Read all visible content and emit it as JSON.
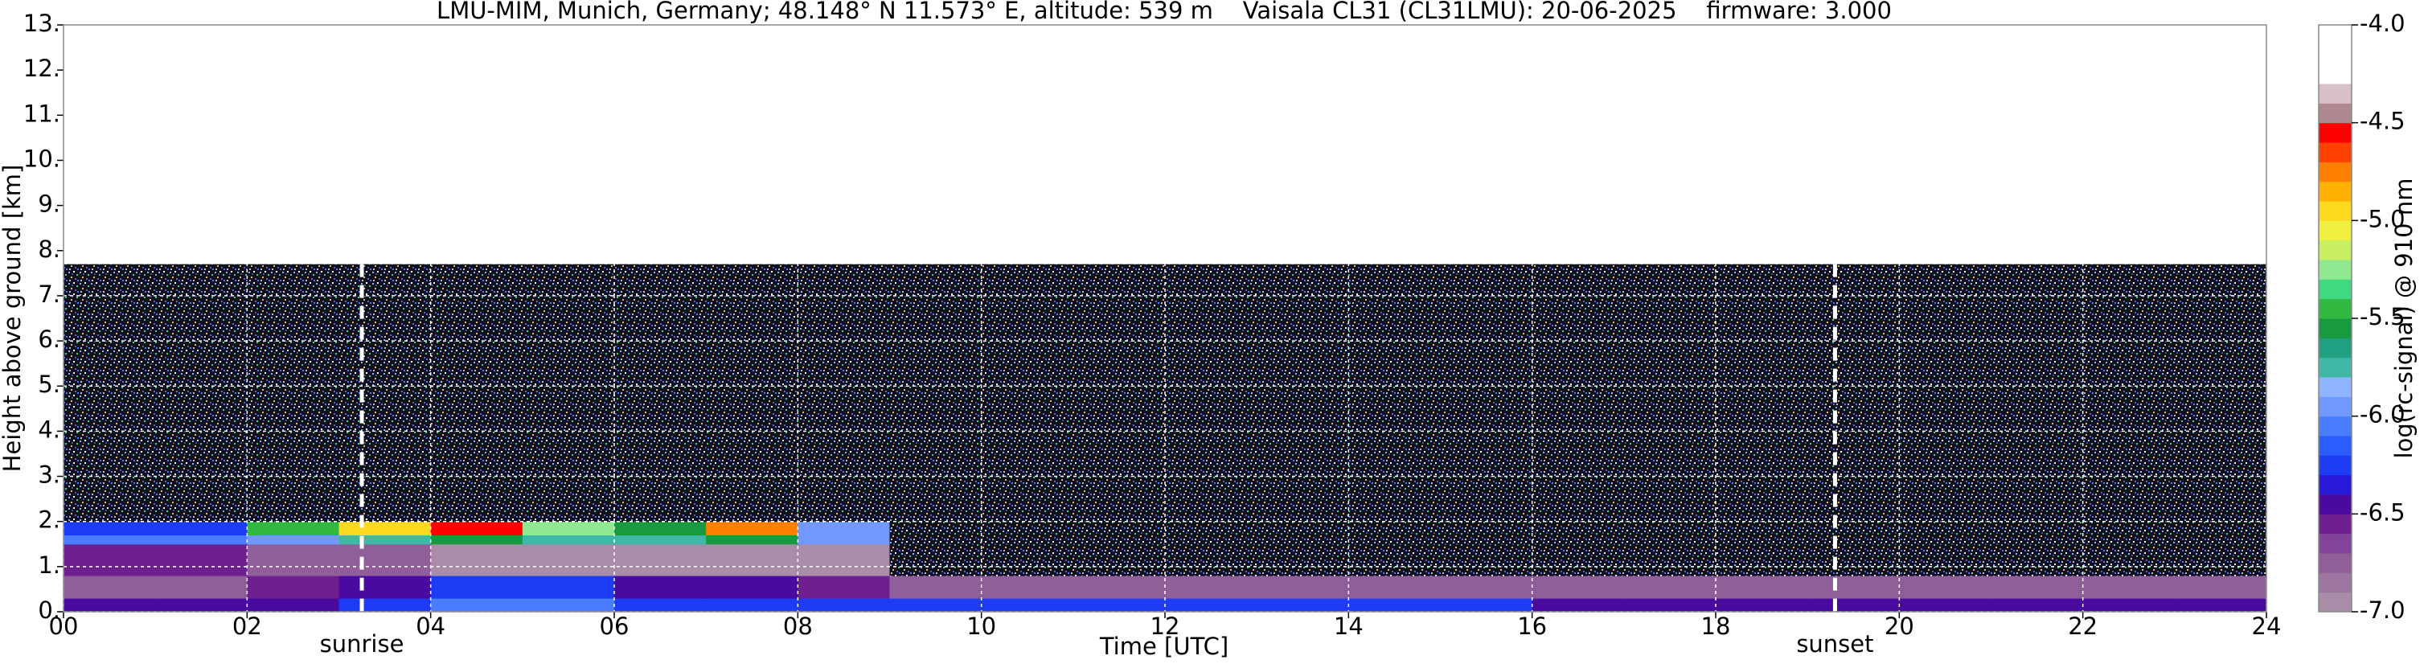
{
  "chart_data": {
    "type": "heatmap",
    "title": "LMU-MIM, Munich, Germany; 48.148° N 11.573° E, altitude: 539 m    Vaisala CL31 (CL31LMU): 20-06-2025    firmware: 3.000",
    "xlabel": "Time [UTC]",
    "ylabel": "Height above ground [km]",
    "colorbar_label": "log(rc-signal) @ 910 nm",
    "xlim": [
      0,
      24
    ],
    "xticks": [
      {
        "value": 0,
        "label": "00"
      },
      {
        "value": 2,
        "label": "02"
      },
      {
        "value": 4,
        "label": "04"
      },
      {
        "value": 6,
        "label": "06"
      },
      {
        "value": 8,
        "label": "08"
      },
      10,
      12,
      14,
      16,
      18,
      20,
      22,
      24
    ],
    "ylim": [
      0,
      13
    ],
    "yticks": [
      {
        "value": 0,
        "label": "0."
      },
      {
        "value": 1,
        "label": "1."
      },
      {
        "value": 2,
        "label": "2."
      },
      {
        "value": 3,
        "label": "3."
      },
      {
        "value": 4,
        "label": "4."
      },
      {
        "value": 5,
        "label": "5."
      },
      {
        "value": 6,
        "label": "6."
      },
      {
        "value": 7,
        "label": "7."
      },
      {
        "value": 8,
        "label": "8."
      },
      {
        "value": 9,
        "label": "9."
      },
      {
        "value": 10,
        "label": "10."
      },
      {
        "value": 11,
        "label": "11."
      },
      {
        "value": 12,
        "label": "12."
      },
      {
        "value": 13,
        "label": "13."
      }
    ],
    "clim": [
      -7,
      -4
    ],
    "cticks": [
      {
        "value": -4.0,
        "label": "-4.0"
      },
      -4.5,
      {
        "value": -5.0,
        "label": "-5.0"
      },
      -5.5,
      {
        "value": -6.0,
        "label": "-6.0"
      },
      -6.5,
      {
        "value": -7.0,
        "label": "-7.0"
      }
    ],
    "colors": [
      "#a88ca8",
      "#9c76a0",
      "#905e98",
      "#82449a",
      "#6e2090",
      "#4a0aa0",
      "#2818d8",
      "#1e3cf5",
      "#2a5cff",
      "#4a7cff",
      "#7098ff",
      "#90b4ff",
      "#40b8a8",
      "#20a080",
      "#189a40",
      "#30b840",
      "#40d880",
      "#90e890",
      "#c8f060",
      "#f0f040",
      "#ffd820",
      "#ffb000",
      "#ff8000",
      "#ff4000",
      "#ff0000",
      "#b08890",
      "#d8c0c8",
      "#ffffff",
      "#ffffff",
      "#ffffff"
    ],
    "grid": true,
    "x_edges": [
      0,
      1,
      2,
      3,
      4,
      5,
      6,
      7,
      8,
      9,
      10,
      11,
      12,
      13,
      14,
      15,
      16,
      17,
      18,
      19,
      20,
      21,
      22,
      23,
      24
    ],
    "y_edges": [
      0,
      0.3,
      0.8,
      1.5,
      1.7,
      2.0,
      7.7
    ],
    "z": [
      [
        -6.5,
        -6.5,
        -6.4,
        -6.2,
        -6.1,
        -6.1,
        -6.2,
        -6.2,
        -6.2,
        -6.3,
        -6.3,
        -6.3,
        -6.3,
        -6.3,
        -6.3,
        -6.3,
        -6.4,
        -6.4,
        -6.4,
        -6.4,
        -6.4,
        -6.4,
        -6.4,
        -6.4
      ],
      [
        -6.8,
        -6.8,
        -6.6,
        -6.4,
        -6.3,
        -6.3,
        -6.4,
        -6.5,
        -6.6,
        -6.7,
        -6.8,
        -6.8,
        -6.8,
        -6.8,
        -6.8,
        -6.8,
        -6.8,
        -6.8,
        -6.8,
        -6.8,
        -6.8,
        -6.8,
        -6.8,
        -6.8
      ],
      [
        -6.6,
        -6.6,
        -6.7,
        -6.8,
        -6.9,
        -6.9,
        -6.9,
        -6.9,
        -6.9,
        null,
        null,
        null,
        null,
        null,
        null,
        null,
        null,
        null,
        null,
        null,
        null,
        null,
        null,
        null
      ],
      [
        -6.1,
        -6.1,
        -6.0,
        -5.8,
        -5.6,
        -5.8,
        -5.7,
        -5.6,
        -5.9,
        null,
        null,
        null,
        null,
        null,
        null,
        null,
        null,
        null,
        null,
        null,
        null,
        null,
        null,
        null
      ],
      [
        -6.3,
        -6.3,
        -5.5,
        -5.0,
        -4.6,
        -5.3,
        -5.6,
        -4.8,
        -6.0,
        null,
        null,
        null,
        null,
        null,
        null,
        null,
        null,
        null,
        null,
        null,
        null,
        null,
        null,
        null
      ],
      [
        null,
        null,
        null,
        null,
        null,
        null,
        null,
        null,
        null,
        null,
        null,
        null,
        null,
        null,
        null,
        null,
        null,
        null,
        null,
        null,
        null,
        null,
        null,
        null
      ]
    ],
    "annotations": [
      {
        "text": "sunrise",
        "x": 3.25
      },
      {
        "text": "sunset",
        "x": 19.3
      }
    ]
  }
}
